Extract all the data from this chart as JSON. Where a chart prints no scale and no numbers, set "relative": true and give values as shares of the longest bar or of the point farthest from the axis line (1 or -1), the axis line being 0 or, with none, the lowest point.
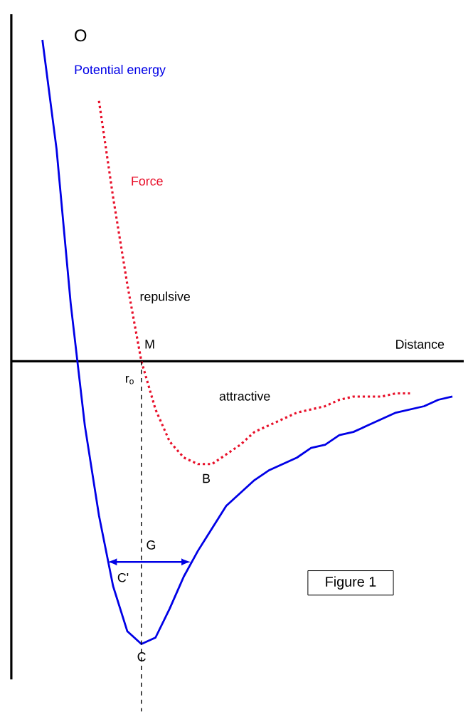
{
  "chart_data": {
    "type": "line",
    "relative": true,
    "title": "Figure 1",
    "xlabel": "Distance",
    "categories": [
      null,
      null,
      null,
      null,
      null,
      null,
      null,
      null,
      null,
      null,
      null,
      null,
      null,
      null,
      null,
      null,
      null,
      null,
      null,
      null,
      null,
      null,
      null,
      null,
      null,
      null,
      null,
      null,
      null,
      null,
      null
    ],
    "series": [
      {
        "name": "Potential energy",
        "color": "#0000e6",
        "line_style": "solid",
        "values": [
          null,
          1.0,
          0.66,
          0.18,
          -0.2,
          -0.48,
          -0.7,
          -0.84,
          -0.88,
          -0.86,
          -0.77,
          -0.67,
          -0.59,
          -0.52,
          -0.45,
          -0.41,
          -0.37,
          -0.34,
          -0.32,
          -0.3,
          -0.27,
          -0.26,
          -0.23,
          -0.22,
          -0.2,
          -0.18,
          -0.16,
          -0.15,
          -0.14,
          -0.12,
          -0.11
        ]
      },
      {
        "name": "Force",
        "color": "#e8102a",
        "line_style": "dotted",
        "values": [
          null,
          null,
          null,
          null,
          null,
          0.81,
          0.51,
          0.24,
          0.0,
          -0.15,
          -0.25,
          -0.3,
          -0.32,
          -0.32,
          -0.29,
          -0.26,
          -0.22,
          -0.2,
          -0.18,
          -0.16,
          -0.15,
          -0.14,
          -0.12,
          -0.11,
          -0.11,
          -0.11,
          -0.1,
          -0.1,
          null,
          null,
          null
        ]
      }
    ],
    "annotations": [
      "O",
      "repulsive",
      "M",
      "r$_{o}$",
      "attractive",
      "B",
      "G",
      "C'",
      "C"
    ]
  }
}
